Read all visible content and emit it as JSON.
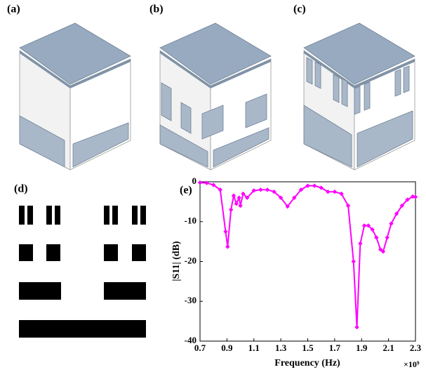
{
  "panel_labels": [
    "(a)",
    "(b)",
    "(c)",
    "(d)",
    "(e)"
  ],
  "chart_data": {
    "type": "line",
    "xlabel": "Frequency (Hz)",
    "ylabel": "|S11| (dB)",
    "x_scale_label": "×10⁹",
    "xlim": [
      0.7,
      2.3
    ],
    "xticks": [
      0.7,
      0.9,
      1.1,
      1.3,
      1.5,
      1.7,
      1.9,
      2.1,
      2.3
    ],
    "ylim": [
      -40,
      0
    ],
    "yticks": [
      -40,
      -30,
      -20,
      -10,
      0
    ],
    "x": [
      0.7,
      0.75,
      0.8,
      0.85,
      0.89,
      0.905,
      0.93,
      0.95,
      0.97,
      0.99,
      1.0,
      1.02,
      1.05,
      1.1,
      1.15,
      1.2,
      1.25,
      1.3,
      1.35,
      1.4,
      1.45,
      1.5,
      1.55,
      1.6,
      1.65,
      1.7,
      1.75,
      1.8,
      1.84,
      1.865,
      1.89,
      1.92,
      1.95,
      1.98,
      2.01,
      2.04,
      2.06,
      2.09,
      2.12,
      2.16,
      2.2,
      2.24,
      2.28,
      2.3
    ],
    "series": [
      {
        "color": "#ff00ff",
        "values": [
          -0.2,
          -0.3,
          -0.8,
          -2,
          -12.5,
          -16.3,
          -7,
          -3.5,
          -5.5,
          -4,
          -6,
          -3,
          -4,
          -2.2,
          -2,
          -2,
          -2.5,
          -4,
          -6.2,
          -4,
          -2,
          -1,
          -1,
          -1.5,
          -2.5,
          -2.5,
          -3,
          -6,
          -20,
          -36.5,
          -15.5,
          -11,
          -11,
          -12,
          -14,
          -17,
          -17.5,
          -14,
          -10.5,
          -8,
          -6,
          -4.5,
          -3.7,
          -3.8
        ]
      }
    ]
  }
}
